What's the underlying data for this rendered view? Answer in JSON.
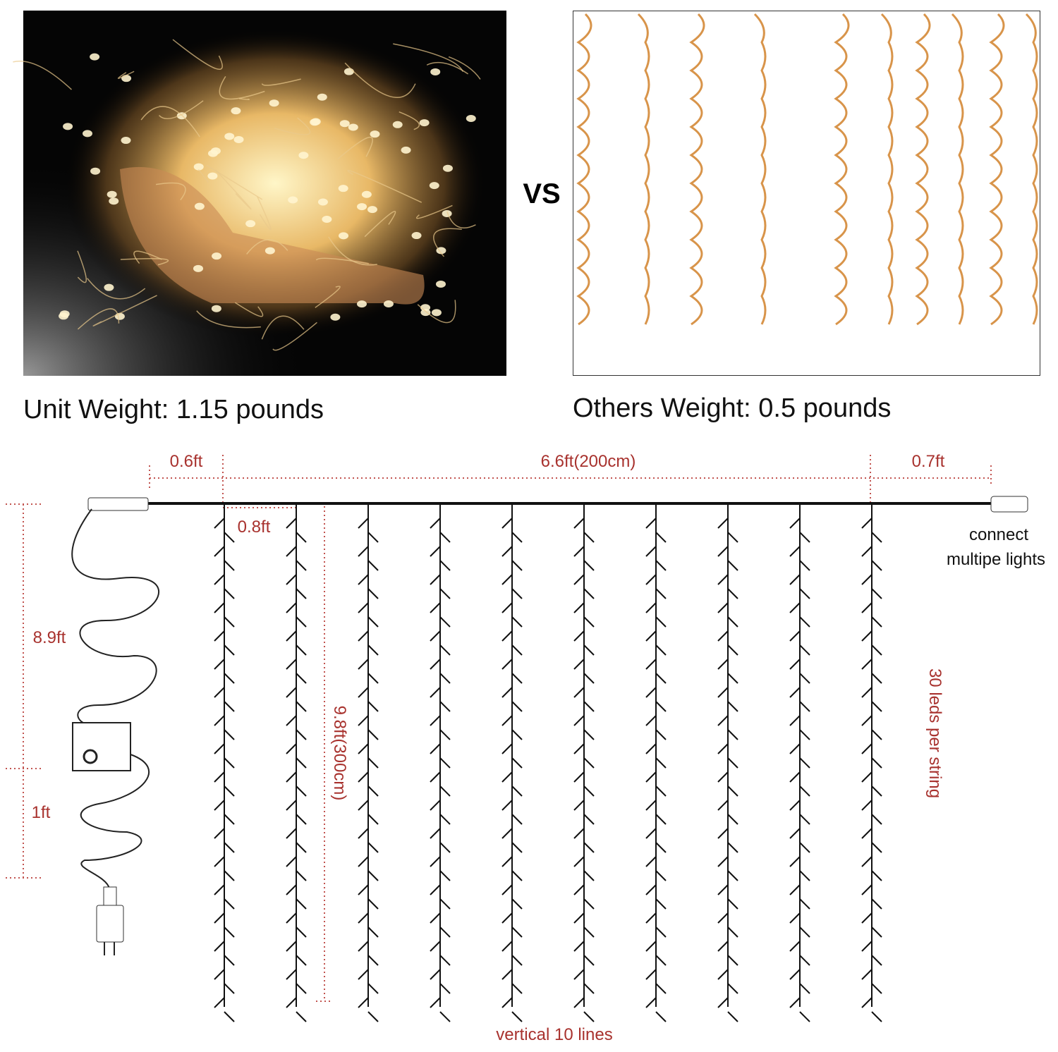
{
  "vs": "VS",
  "left_caption": "Unit Weight: 1.15 pounds",
  "right_caption": "Others Weight: 0.5 pounds",
  "diagram": {
    "top_left_dim": "0.6ft",
    "top_main_dim": "6.6ft(200cm)",
    "top_right_dim": "0.7ft",
    "spacing_dim": "0.8ft",
    "connect_line1": "connect",
    "connect_line2": "multipe lights",
    "cable_dim": "8.9ft",
    "plug_dim": "1ft",
    "height_dim": "9.8ft(300cm)",
    "leds_label": "30 leds per string",
    "lines_label": "vertical 10 lines"
  }
}
